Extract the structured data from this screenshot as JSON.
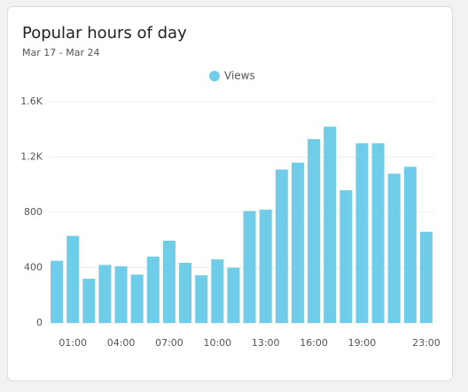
{
  "chart_data": {
    "type": "bar",
    "title": "Popular hours of day",
    "subtitle": "Mar 17 - Mar 24",
    "categories": [
      null,
      "01:00",
      null,
      null,
      "04:00",
      null,
      null,
      "07:00",
      null,
      null,
      "10:00",
      null,
      null,
      "13:00",
      null,
      null,
      "16:00",
      null,
      null,
      "19:00",
      null,
      null,
      null,
      "23:00"
    ],
    "series": [
      {
        "name": "Views",
        "color": "#70cdea",
        "values": [
          450,
          630,
          320,
          420,
          410,
          350,
          480,
          595,
          435,
          345,
          460,
          400,
          810,
          820,
          1110,
          1160,
          1330,
          1420,
          960,
          1300,
          1300,
          1080,
          1130,
          660
        ]
      }
    ],
    "ylim": [
      0,
      1600
    ],
    "yticks": [
      0,
      400,
      800,
      {
        "value": 1200,
        "label": "1.2K"
      },
      {
        "value": 1600,
        "label": "1.6K"
      }
    ],
    "grid": true,
    "legend": "top"
  }
}
